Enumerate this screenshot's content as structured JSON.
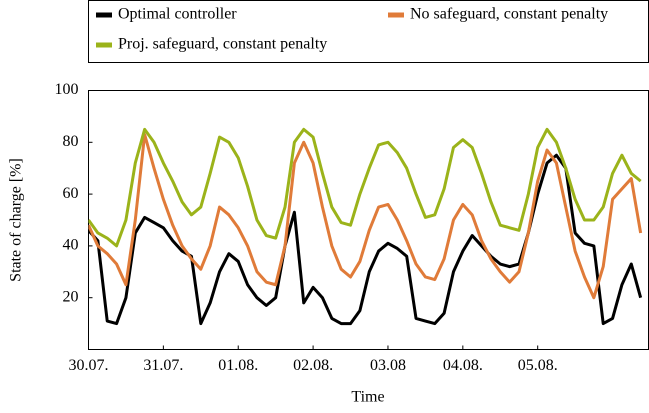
{
  "chart_data": {
    "type": "line",
    "x_label": "Time",
    "y_label": "State of charge [%]",
    "x": [
      0,
      0.125,
      0.25,
      0.375,
      0.5,
      0.625,
      0.75,
      0.875,
      1,
      1.125,
      1.25,
      1.375,
      1.5,
      1.625,
      1.75,
      1.875,
      2,
      2.125,
      2.25,
      2.375,
      2.5,
      2.625,
      2.75,
      2.875,
      3,
      3.125,
      3.25,
      3.375,
      3.5,
      3.625,
      3.75,
      3.875,
      4,
      4.125,
      4.25,
      4.375,
      4.5,
      4.625,
      4.75,
      4.875,
      5,
      5.125,
      5.25,
      5.375,
      5.5,
      5.625,
      5.75,
      5.875,
      6,
      6.125,
      6.25,
      6.375,
      6.5,
      6.625,
      6.75,
      6.875,
      7,
      7.125,
      7.25,
      7.375
    ],
    "series": [
      {
        "name": "Optimal controller",
        "color": "#000000",
        "values": [
          46,
          42,
          11,
          10,
          20,
          45,
          51,
          49,
          47,
          42,
          38,
          36,
          10,
          18,
          30,
          37,
          34,
          25,
          20,
          17,
          20,
          40,
          53,
          18,
          24,
          20,
          12,
          10,
          10,
          15,
          30,
          38,
          41,
          39,
          36,
          12,
          11,
          10,
          14,
          30,
          38,
          44,
          40,
          36,
          33,
          32,
          33,
          45,
          60,
          72,
          75,
          70,
          45,
          41,
          40,
          10,
          12,
          25,
          33,
          20
        ]
      },
      {
        "name": "No safeguard, constant penalty",
        "color": "#e07b39",
        "values": [
          48,
          40,
          37,
          33,
          25,
          50,
          83,
          70,
          58,
          48,
          40,
          35,
          31,
          40,
          55,
          52,
          47,
          40,
          30,
          26,
          25,
          40,
          72,
          80,
          72,
          55,
          40,
          31,
          28,
          34,
          46,
          55,
          56,
          50,
          42,
          33,
          28,
          27,
          35,
          50,
          56,
          52,
          42,
          35,
          30,
          26,
          30,
          45,
          65,
          77,
          72,
          55,
          38,
          28,
          20,
          32,
          58,
          62,
          66,
          45
        ]
      },
      {
        "name": "Proj. safeguard, constant penalty",
        "color": "#9bb31a",
        "values": [
          50,
          45,
          43,
          40,
          50,
          72,
          85,
          80,
          72,
          65,
          57,
          52,
          55,
          68,
          82,
          80,
          74,
          63,
          50,
          44,
          43,
          55,
          80,
          85,
          82,
          68,
          55,
          49,
          48,
          60,
          70,
          79,
          80,
          76,
          70,
          60,
          51,
          52,
          62,
          78,
          81,
          78,
          68,
          57,
          48,
          47,
          46,
          60,
          78,
          85,
          80,
          70,
          58,
          50,
          50,
          55,
          68,
          75,
          68,
          65
        ]
      }
    ],
    "xlim": [
      0,
      7.48
    ],
    "xticks": [
      {
        "value": 0,
        "label": "30.07."
      },
      {
        "value": 1,
        "label": "31.07."
      },
      {
        "value": 2,
        "label": "01.08."
      },
      {
        "value": 3,
        "label": "02.08."
      },
      {
        "value": 4,
        "label": "03.08"
      },
      {
        "value": 5,
        "label": "04.08."
      },
      {
        "value": 6,
        "label": "05.08."
      }
    ],
    "ylim": [
      0,
      100
    ],
    "yticks": [
      20,
      40,
      60,
      80,
      100
    ]
  }
}
